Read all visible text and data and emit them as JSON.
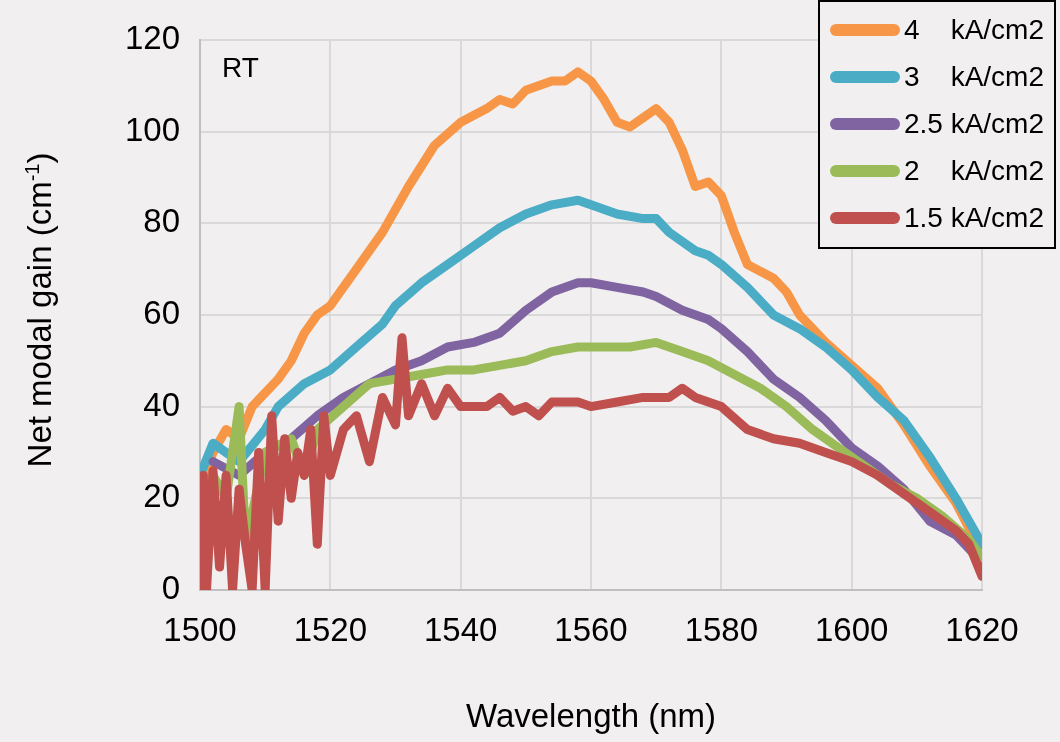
{
  "chart_data": {
    "type": "line",
    "xlabel": "Wavelength (nm)",
    "ylabel": "Net modal gain (cm$^{-1}$)",
    "annotations": [
      "RT"
    ],
    "xlim": [
      1500,
      1620
    ],
    "xticks": [
      1500,
      1520,
      1540,
      1560,
      1580,
      1600,
      1620
    ],
    "ylim": [
      0,
      120
    ],
    "yticks": [
      0,
      20,
      40,
      60,
      80,
      100,
      120
    ],
    "grid": true,
    "legend": "top right",
    "marker": "none",
    "line_style": "solid",
    "series": [
      {
        "name": "4    kA/cm2",
        "color": "#f79646",
        "x": [
          1500,
          1502,
          1504,
          1506,
          1508,
          1510,
          1512,
          1514,
          1516,
          1518,
          1520,
          1524,
          1528,
          1532,
          1536,
          1540,
          1544,
          1546,
          1548,
          1550,
          1554,
          1556,
          1558,
          1560,
          1562,
          1564,
          1566,
          1568,
          1570,
          1572,
          1574,
          1576,
          1578,
          1580,
          1582,
          1584,
          1588,
          1590,
          1592,
          1596,
          1600,
          1604,
          1608,
          1612,
          1616,
          1620
        ],
        "values": [
          22,
          30,
          35,
          33,
          40,
          43,
          46,
          50,
          56,
          60,
          62,
          70,
          78,
          88,
          97,
          102,
          105,
          107,
          106,
          109,
          111,
          111,
          113,
          111,
          107,
          102,
          101,
          103,
          105,
          102,
          96,
          88,
          89,
          86,
          78,
          71,
          68,
          65,
          60,
          54,
          49,
          44,
          36,
          27,
          19,
          8
        ]
      },
      {
        "name": "3    kA/cm2",
        "color": "#4bacc6",
        "x": [
          1500,
          1502,
          1504,
          1506,
          1510,
          1512,
          1516,
          1520,
          1524,
          1528,
          1530,
          1534,
          1538,
          1542,
          1546,
          1550,
          1554,
          1558,
          1560,
          1564,
          1568,
          1570,
          1572,
          1576,
          1578,
          1580,
          1584,
          1588,
          1592,
          1596,
          1600,
          1604,
          1608,
          1612,
          1616,
          1620
        ],
        "values": [
          25,
          32,
          30,
          28,
          35,
          40,
          45,
          48,
          53,
          58,
          62,
          67,
          71,
          75,
          79,
          82,
          84,
          85,
          84,
          82,
          81,
          81,
          78,
          74,
          73,
          71,
          66,
          60,
          57,
          53,
          48,
          42,
          37,
          29,
          20,
          10
        ]
      },
      {
        "name": "2.5 kA/cm2",
        "color": "#8064a2",
        "x": [
          1502,
          1506,
          1510,
          1514,
          1518,
          1522,
          1526,
          1530,
          1534,
          1538,
          1542,
          1546,
          1550,
          1554,
          1558,
          1560,
          1564,
          1568,
          1570,
          1574,
          1578,
          1580,
          1584,
          1588,
          1592,
          1596,
          1600,
          1604,
          1608,
          1612,
          1616,
          1620
        ],
        "values": [
          28,
          25,
          30,
          33,
          38,
          42,
          45,
          48,
          50,
          53,
          54,
          56,
          61,
          65,
          67,
          67,
          66,
          65,
          64,
          61,
          59,
          57,
          52,
          46,
          42,
          37,
          31,
          27,
          22,
          15,
          12,
          6
        ]
      },
      {
        "name": "2    kA/cm2",
        "color": "#9bbb59",
        "x": [
          1502,
          1504,
          1506,
          1507,
          1510,
          1514,
          1516,
          1518,
          1522,
          1526,
          1530,
          1534,
          1538,
          1542,
          1546,
          1550,
          1554,
          1558,
          1562,
          1566,
          1570,
          1574,
          1578,
          1582,
          1586,
          1590,
          1594,
          1598,
          1602,
          1606,
          1610,
          1614,
          1618,
          1620
        ],
        "values": [
          25,
          20,
          40,
          10,
          30,
          33,
          25,
          35,
          40,
          45,
          46,
          47,
          48,
          48,
          49,
          50,
          52,
          53,
          53,
          53,
          54,
          52,
          50,
          47,
          44,
          40,
          35,
          31,
          27,
          23,
          20,
          16,
          11,
          7
        ]
      },
      {
        "name": "1.5 kA/cm2",
        "color": "#c0504d",
        "x": [
          1500,
          1500.5,
          1501,
          1502,
          1503,
          1504,
          1505,
          1506,
          1507,
          1508,
          1509,
          1510,
          1511,
          1512,
          1513,
          1514,
          1515,
          1516,
          1517,
          1518,
          1519,
          1520,
          1522,
          1524,
          1526,
          1528,
          1530,
          1531,
          1532,
          1534,
          1536,
          1538,
          1540,
          1544,
          1546,
          1548,
          1550,
          1552,
          1554,
          1558,
          1560,
          1564,
          1568,
          1572,
          1574,
          1576,
          1580,
          1584,
          1588,
          1592,
          1596,
          1600,
          1604,
          1608,
          1612,
          1616,
          1618,
          1620
        ],
        "values": [
          0,
          25,
          0,
          26,
          5,
          25,
          0,
          22,
          10,
          0,
          30,
          0,
          38,
          15,
          33,
          20,
          30,
          25,
          35,
          10,
          38,
          25,
          35,
          38,
          28,
          42,
          36,
          55,
          38,
          45,
          38,
          44,
          40,
          40,
          42,
          39,
          40,
          38,
          41,
          41,
          40,
          41,
          42,
          42,
          44,
          42,
          40,
          35,
          33,
          32,
          30,
          28,
          25,
          21,
          17,
          13,
          10,
          3
        ]
      }
    ]
  }
}
